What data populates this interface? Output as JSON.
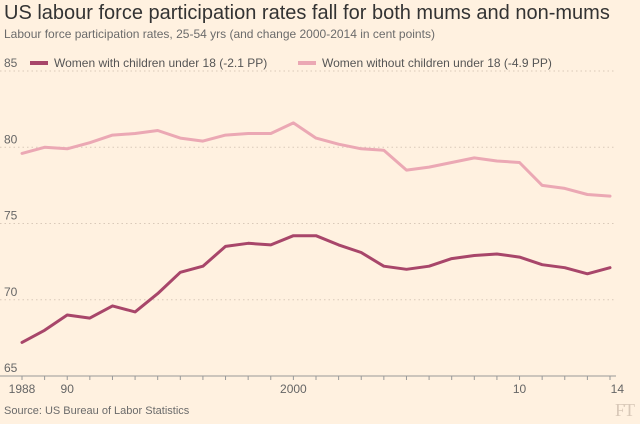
{
  "chart_data": {
    "type": "line",
    "title": "US labour force participation rates fall for both mums and non-mums",
    "subtitle": "Labour force participation rates, 25-54 yrs (and change 2000-2014 in cent points)",
    "source": "Source: US Bureau of Labor Statistics",
    "logo": "FT",
    "xlim": [
      1988,
      2014
    ],
    "ylim": [
      65,
      85
    ],
    "yticks": [
      65,
      70,
      75,
      80,
      85
    ],
    "xticks": [
      {
        "value": 1988,
        "label": "1988"
      },
      {
        "value": 1990,
        "label": "90"
      },
      {
        "value": 2000,
        "label": "2000"
      },
      {
        "value": 2010,
        "label": "10"
      },
      {
        "value": 2014,
        "label": "14"
      }
    ],
    "x": [
      1988,
      1989,
      1990,
      1991,
      1992,
      1993,
      1994,
      1995,
      1996,
      1997,
      1998,
      1999,
      2000,
      2001,
      2002,
      2003,
      2004,
      2005,
      2006,
      2007,
      2008,
      2009,
      2010,
      2011,
      2012,
      2013,
      2014
    ],
    "series": [
      {
        "name": "Women with children under 18 (-2.1 PP)",
        "color": "#a8466a",
        "values": [
          67.2,
          68.0,
          69.0,
          68.8,
          69.6,
          69.2,
          70.4,
          71.8,
          72.2,
          73.5,
          73.7,
          73.6,
          74.2,
          74.2,
          73.6,
          73.1,
          72.2,
          72.0,
          72.2,
          72.7,
          72.9,
          73.0,
          72.8,
          72.3,
          72.1,
          71.7,
          72.1
        ]
      },
      {
        "name": "Women without children under 18 (-4.9 PP)",
        "color": "#eba8b4",
        "values": [
          79.6,
          80.0,
          79.9,
          80.3,
          80.8,
          80.9,
          81.1,
          80.6,
          80.4,
          80.8,
          80.9,
          80.9,
          81.6,
          80.6,
          80.2,
          79.9,
          79.8,
          78.5,
          78.7,
          79.0,
          79.3,
          79.1,
          79.0,
          77.5,
          77.3,
          76.9,
          76.8
        ]
      }
    ]
  }
}
